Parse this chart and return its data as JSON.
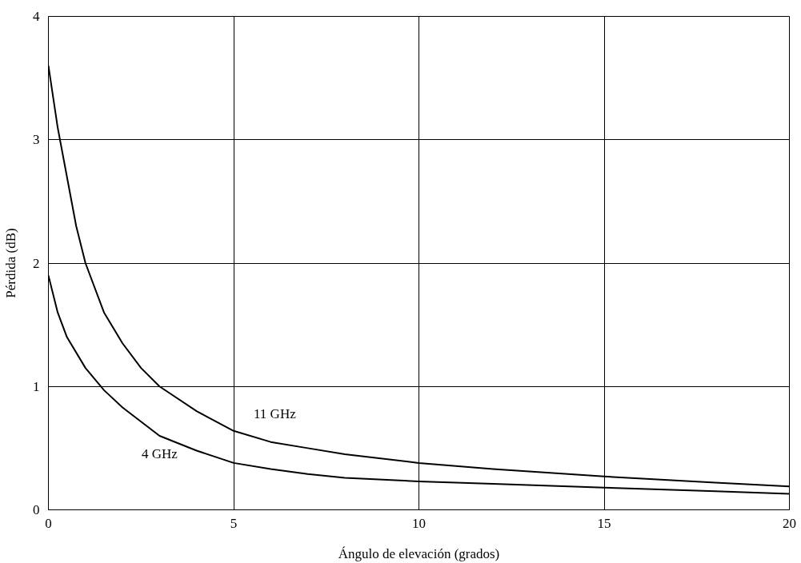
{
  "chart_data": {
    "type": "line",
    "xlabel": "Ángulo de elevación (grados)",
    "ylabel": "Pérdida (dB)",
    "xlim": [
      0,
      20
    ],
    "ylim": [
      0,
      4
    ],
    "xticks": [
      0,
      5,
      10,
      15,
      20
    ],
    "yticks": [
      0,
      1,
      2,
      3,
      4
    ],
    "grid": true,
    "marker": "none",
    "line_style": "solid",
    "series": [
      {
        "name": "11 GHz",
        "color": "#000000",
        "x": [
          0,
          0.25,
          0.5,
          0.75,
          1,
          1.5,
          2,
          2.5,
          3,
          4,
          5,
          6,
          7,
          8,
          10,
          12,
          15,
          18,
          20
        ],
        "values": [
          3.6,
          3.1,
          2.7,
          2.3,
          2.0,
          1.6,
          1.35,
          1.15,
          1.0,
          0.8,
          0.64,
          0.55,
          0.5,
          0.45,
          0.38,
          0.33,
          0.27,
          0.22,
          0.19
        ]
      },
      {
        "name": "4 GHz",
        "color": "#000000",
        "x": [
          0,
          0.25,
          0.5,
          1,
          1.5,
          2,
          3,
          4,
          5,
          6,
          7,
          8,
          10,
          12,
          15,
          18,
          20
        ],
        "values": [
          1.9,
          1.6,
          1.4,
          1.15,
          0.97,
          0.83,
          0.6,
          0.48,
          0.38,
          0.33,
          0.29,
          0.26,
          0.23,
          0.21,
          0.18,
          0.15,
          0.13
        ]
      }
    ]
  }
}
